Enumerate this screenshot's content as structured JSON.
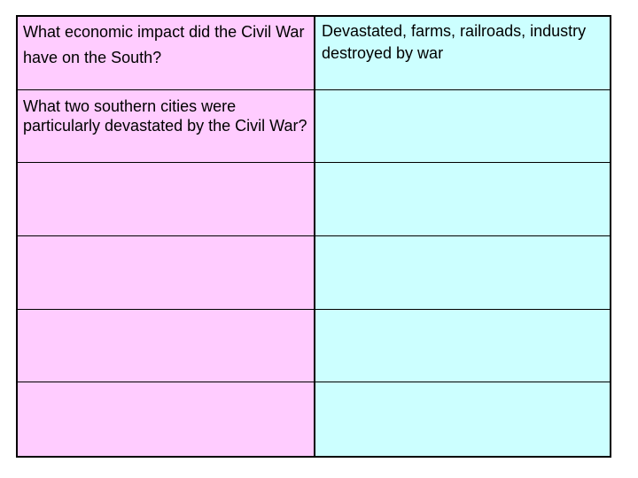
{
  "table": {
    "rows": [
      {
        "question": "What economic impact did the Civil War have on the South?",
        "answer": "Devastated, farms, railroads, industry destroyed by war"
      },
      {
        "question": "What two southern cities were particularly devastated by the Civil War?",
        "answer": ""
      },
      {
        "question": "",
        "answer": ""
      },
      {
        "question": "",
        "answer": ""
      },
      {
        "question": "",
        "answer": ""
      },
      {
        "question": "",
        "answer": ""
      }
    ],
    "colors": {
      "question_bg": "#ffccff",
      "answer_bg": "#ccffff",
      "border": "#000000"
    }
  }
}
